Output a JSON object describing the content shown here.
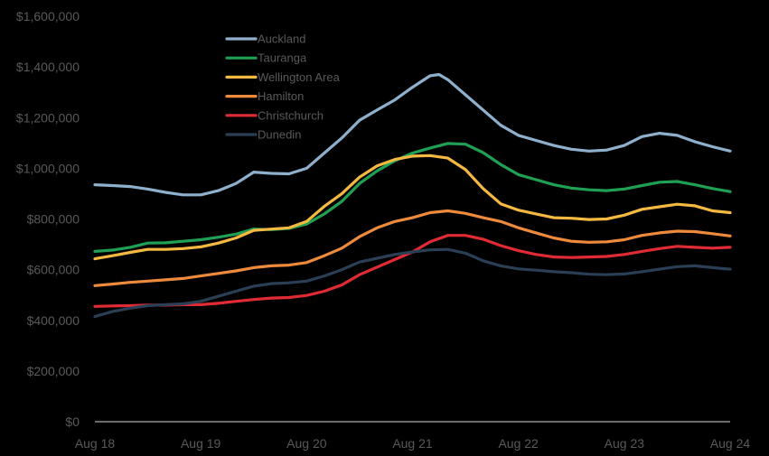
{
  "chart_data": {
    "type": "line",
    "title": "",
    "xlabel": "",
    "ylabel": "",
    "ylim": [
      0,
      1600000
    ],
    "y_ticks": [
      0,
      200000,
      400000,
      600000,
      800000,
      1000000,
      1200000,
      1400000,
      1600000
    ],
    "y_tick_labels": [
      "$0",
      "$200,000",
      "$400,000",
      "$600,000",
      "$800,000",
      "$1,000,000",
      "$1,200,000",
      "$1,400,000",
      "$1,600,000"
    ],
    "x_range": [
      "2018-08",
      "2024-08"
    ],
    "x_ticks": [
      "2018-08",
      "2019-08",
      "2020-08",
      "2021-08",
      "2022-08",
      "2023-08",
      "2024-08"
    ],
    "x_tick_labels": [
      "Aug 18",
      "Aug 19",
      "Aug 20",
      "Aug 21",
      "Aug 22",
      "Aug 23",
      "Aug 24"
    ],
    "grid": false,
    "legend_position": "upper-left-inside",
    "background": "#000000",
    "series": [
      {
        "name": "Auckland",
        "color": "#8FB0CC",
        "points": [
          [
            "2018-08",
            935000
          ],
          [
            "2018-10",
            932000
          ],
          [
            "2018-12",
            928000
          ],
          [
            "2019-02",
            918000
          ],
          [
            "2019-04",
            905000
          ],
          [
            "2019-06",
            895000
          ],
          [
            "2019-08",
            895000
          ],
          [
            "2019-10",
            912000
          ],
          [
            "2019-12",
            940000
          ],
          [
            "2020-02",
            985000
          ],
          [
            "2020-04",
            980000
          ],
          [
            "2020-06",
            978000
          ],
          [
            "2020-08",
            1000000
          ],
          [
            "2020-10",
            1060000
          ],
          [
            "2020-12",
            1120000
          ],
          [
            "2021-02",
            1190000
          ],
          [
            "2021-04",
            1230000
          ],
          [
            "2021-06",
            1270000
          ],
          [
            "2021-08",
            1320000
          ],
          [
            "2021-10",
            1365000
          ],
          [
            "2021-11",
            1370000
          ],
          [
            "2021-12",
            1350000
          ],
          [
            "2022-02",
            1290000
          ],
          [
            "2022-04",
            1230000
          ],
          [
            "2022-06",
            1170000
          ],
          [
            "2022-08",
            1130000
          ],
          [
            "2022-10",
            1110000
          ],
          [
            "2022-12",
            1090000
          ],
          [
            "2023-02",
            1075000
          ],
          [
            "2023-04",
            1068000
          ],
          [
            "2023-06",
            1072000
          ],
          [
            "2023-08",
            1090000
          ],
          [
            "2023-10",
            1125000
          ],
          [
            "2023-12",
            1138000
          ],
          [
            "2024-02",
            1130000
          ],
          [
            "2024-04",
            1105000
          ],
          [
            "2024-06",
            1085000
          ],
          [
            "2024-08",
            1068000
          ]
        ]
      },
      {
        "name": "Tauranga",
        "color": "#1FA055",
        "points": [
          [
            "2018-08",
            672000
          ],
          [
            "2018-10",
            677000
          ],
          [
            "2018-12",
            688000
          ],
          [
            "2019-02",
            705000
          ],
          [
            "2019-04",
            706000
          ],
          [
            "2019-06",
            712000
          ],
          [
            "2019-08",
            718000
          ],
          [
            "2019-10",
            728000
          ],
          [
            "2019-12",
            740000
          ],
          [
            "2020-02",
            760000
          ],
          [
            "2020-04",
            758000
          ],
          [
            "2020-06",
            763000
          ],
          [
            "2020-08",
            780000
          ],
          [
            "2020-10",
            820000
          ],
          [
            "2020-12",
            870000
          ],
          [
            "2021-02",
            940000
          ],
          [
            "2021-04",
            990000
          ],
          [
            "2021-06",
            1030000
          ],
          [
            "2021-08",
            1060000
          ],
          [
            "2021-10",
            1080000
          ],
          [
            "2021-12",
            1098000
          ],
          [
            "2022-02",
            1095000
          ],
          [
            "2022-04",
            1062000
          ],
          [
            "2022-06",
            1015000
          ],
          [
            "2022-08",
            975000
          ],
          [
            "2022-10",
            955000
          ],
          [
            "2022-12",
            935000
          ],
          [
            "2023-02",
            922000
          ],
          [
            "2023-04",
            915000
          ],
          [
            "2023-06",
            912000
          ],
          [
            "2023-08",
            918000
          ],
          [
            "2023-10",
            932000
          ],
          [
            "2023-12",
            945000
          ],
          [
            "2024-02",
            948000
          ],
          [
            "2024-04",
            935000
          ],
          [
            "2024-06",
            920000
          ],
          [
            "2024-08",
            908000
          ]
        ]
      },
      {
        "name": "Wellington Area",
        "color": "#F5B942",
        "points": [
          [
            "2018-08",
            643000
          ],
          [
            "2018-10",
            655000
          ],
          [
            "2018-12",
            668000
          ],
          [
            "2019-02",
            680000
          ],
          [
            "2019-04",
            680000
          ],
          [
            "2019-06",
            683000
          ],
          [
            "2019-08",
            690000
          ],
          [
            "2019-10",
            705000
          ],
          [
            "2019-12",
            725000
          ],
          [
            "2020-02",
            755000
          ],
          [
            "2020-04",
            760000
          ],
          [
            "2020-06",
            765000
          ],
          [
            "2020-08",
            790000
          ],
          [
            "2020-10",
            850000
          ],
          [
            "2020-12",
            900000
          ],
          [
            "2021-02",
            965000
          ],
          [
            "2021-04",
            1010000
          ],
          [
            "2021-06",
            1035000
          ],
          [
            "2021-08",
            1048000
          ],
          [
            "2021-10",
            1050000
          ],
          [
            "2021-12",
            1040000
          ],
          [
            "2022-02",
            995000
          ],
          [
            "2022-04",
            920000
          ],
          [
            "2022-06",
            860000
          ],
          [
            "2022-08",
            835000
          ],
          [
            "2022-10",
            820000
          ],
          [
            "2022-12",
            805000
          ],
          [
            "2023-02",
            803000
          ],
          [
            "2023-04",
            798000
          ],
          [
            "2023-06",
            800000
          ],
          [
            "2023-08",
            815000
          ],
          [
            "2023-10",
            838000
          ],
          [
            "2023-12",
            848000
          ],
          [
            "2024-02",
            858000
          ],
          [
            "2024-04",
            852000
          ],
          [
            "2024-06",
            832000
          ],
          [
            "2024-08",
            825000
          ]
        ]
      },
      {
        "name": "Hamilton",
        "color": "#EE8A3C",
        "points": [
          [
            "2018-08",
            537000
          ],
          [
            "2018-10",
            543000
          ],
          [
            "2018-12",
            550000
          ],
          [
            "2019-02",
            555000
          ],
          [
            "2019-04",
            560000
          ],
          [
            "2019-06",
            565000
          ],
          [
            "2019-08",
            575000
          ],
          [
            "2019-10",
            585000
          ],
          [
            "2019-12",
            595000
          ],
          [
            "2020-02",
            608000
          ],
          [
            "2020-04",
            615000
          ],
          [
            "2020-06",
            618000
          ],
          [
            "2020-08",
            628000
          ],
          [
            "2020-10",
            655000
          ],
          [
            "2020-12",
            685000
          ],
          [
            "2021-02",
            730000
          ],
          [
            "2021-04",
            765000
          ],
          [
            "2021-06",
            790000
          ],
          [
            "2021-08",
            805000
          ],
          [
            "2021-10",
            825000
          ],
          [
            "2021-12",
            832000
          ],
          [
            "2022-02",
            822000
          ],
          [
            "2022-04",
            805000
          ],
          [
            "2022-06",
            790000
          ],
          [
            "2022-08",
            765000
          ],
          [
            "2022-10",
            745000
          ],
          [
            "2022-12",
            725000
          ],
          [
            "2023-02",
            712000
          ],
          [
            "2023-04",
            708000
          ],
          [
            "2023-06",
            710000
          ],
          [
            "2023-08",
            718000
          ],
          [
            "2023-10",
            735000
          ],
          [
            "2023-12",
            745000
          ],
          [
            "2024-02",
            752000
          ],
          [
            "2024-04",
            750000
          ],
          [
            "2024-06",
            742000
          ],
          [
            "2024-08",
            733000
          ]
        ]
      },
      {
        "name": "Christchurch",
        "color": "#E02B35",
        "points": [
          [
            "2018-08",
            455000
          ],
          [
            "2018-10",
            457000
          ],
          [
            "2018-12",
            458000
          ],
          [
            "2019-02",
            460000
          ],
          [
            "2019-04",
            460000
          ],
          [
            "2019-06",
            462000
          ],
          [
            "2019-08",
            462000
          ],
          [
            "2019-10",
            467000
          ],
          [
            "2019-12",
            475000
          ],
          [
            "2020-02",
            482000
          ],
          [
            "2020-04",
            488000
          ],
          [
            "2020-06",
            490000
          ],
          [
            "2020-08",
            498000
          ],
          [
            "2020-10",
            515000
          ],
          [
            "2020-12",
            540000
          ],
          [
            "2021-02",
            580000
          ],
          [
            "2021-04",
            610000
          ],
          [
            "2021-06",
            640000
          ],
          [
            "2021-08",
            670000
          ],
          [
            "2021-10",
            710000
          ],
          [
            "2021-12",
            735000
          ],
          [
            "2022-02",
            735000
          ],
          [
            "2022-04",
            720000
          ],
          [
            "2022-06",
            695000
          ],
          [
            "2022-08",
            675000
          ],
          [
            "2022-10",
            660000
          ],
          [
            "2022-12",
            650000
          ],
          [
            "2023-02",
            648000
          ],
          [
            "2023-04",
            650000
          ],
          [
            "2023-06",
            652000
          ],
          [
            "2023-08",
            660000
          ],
          [
            "2023-10",
            672000
          ],
          [
            "2023-12",
            683000
          ],
          [
            "2024-02",
            692000
          ],
          [
            "2024-04",
            688000
          ],
          [
            "2024-06",
            685000
          ],
          [
            "2024-08",
            688000
          ]
        ]
      },
      {
        "name": "Dunedin",
        "color": "#2A3F55",
        "points": [
          [
            "2018-08",
            415000
          ],
          [
            "2018-10",
            435000
          ],
          [
            "2018-12",
            448000
          ],
          [
            "2019-02",
            458000
          ],
          [
            "2019-04",
            462000
          ],
          [
            "2019-06",
            465000
          ],
          [
            "2019-08",
            475000
          ],
          [
            "2019-10",
            495000
          ],
          [
            "2019-12",
            515000
          ],
          [
            "2020-02",
            535000
          ],
          [
            "2020-04",
            545000
          ],
          [
            "2020-06",
            548000
          ],
          [
            "2020-08",
            555000
          ],
          [
            "2020-10",
            575000
          ],
          [
            "2020-12",
            600000
          ],
          [
            "2021-02",
            630000
          ],
          [
            "2021-04",
            645000
          ],
          [
            "2021-06",
            660000
          ],
          [
            "2021-08",
            670000
          ],
          [
            "2021-10",
            678000
          ],
          [
            "2021-12",
            680000
          ],
          [
            "2022-02",
            665000
          ],
          [
            "2022-04",
            635000
          ],
          [
            "2022-06",
            615000
          ],
          [
            "2022-08",
            603000
          ],
          [
            "2022-10",
            598000
          ],
          [
            "2022-12",
            592000
          ],
          [
            "2023-02",
            588000
          ],
          [
            "2023-04",
            582000
          ],
          [
            "2023-06",
            580000
          ],
          [
            "2023-08",
            583000
          ],
          [
            "2023-10",
            592000
          ],
          [
            "2023-12",
            602000
          ],
          [
            "2024-02",
            612000
          ],
          [
            "2024-04",
            615000
          ],
          [
            "2024-06",
            608000
          ],
          [
            "2024-08",
            602000
          ]
        ]
      }
    ]
  }
}
